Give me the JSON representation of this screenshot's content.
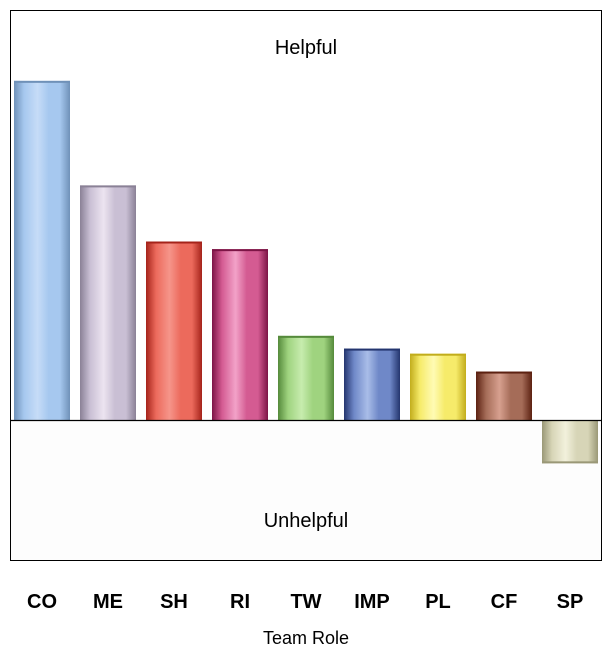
{
  "chart_data": {
    "type": "bar",
    "title": "",
    "xlabel": "Team Role",
    "ylabel": "",
    "ylim": [
      -30,
      140
    ],
    "grid": false,
    "annotations": {
      "top": "Helpful",
      "bottom": "Unhelpful"
    },
    "categories": [
      "CO",
      "ME",
      "SH",
      "RI",
      "TW",
      "IMP",
      "PL",
      "CF",
      "SP"
    ],
    "values": [
      133,
      92,
      70,
      67,
      33,
      28,
      26,
      19,
      -17
    ],
    "colors": {
      "CO": {
        "dark": "#6f91b8",
        "light": "#c6dcf7",
        "mid": "#a6c8ef"
      },
      "ME": {
        "dark": "#8a8196",
        "light": "#ece4f0",
        "mid": "#c9bfd4"
      },
      "SH": {
        "dark": "#a5231a",
        "light": "#f6958a",
        "mid": "#ec6a5c"
      },
      "RI": {
        "dark": "#7c1546",
        "light": "#f2a2c8",
        "mid": "#d45b92"
      },
      "TW": {
        "dark": "#558a3b",
        "light": "#c7ecae",
        "mid": "#9fd37f"
      },
      "IMP": {
        "dark": "#24356e",
        "light": "#a9bde8",
        "mid": "#6f88c8"
      },
      "PL": {
        "dark": "#c2ad1c",
        "light": "#fffbb4",
        "mid": "#f6eb6a"
      },
      "CF": {
        "dark": "#5c2111",
        "light": "#d7a08f",
        "mid": "#a56c58"
      },
      "SP": {
        "dark": "#9a9877",
        "light": "#f2f1dc",
        "mid": "#d7d5b7"
      }
    }
  }
}
